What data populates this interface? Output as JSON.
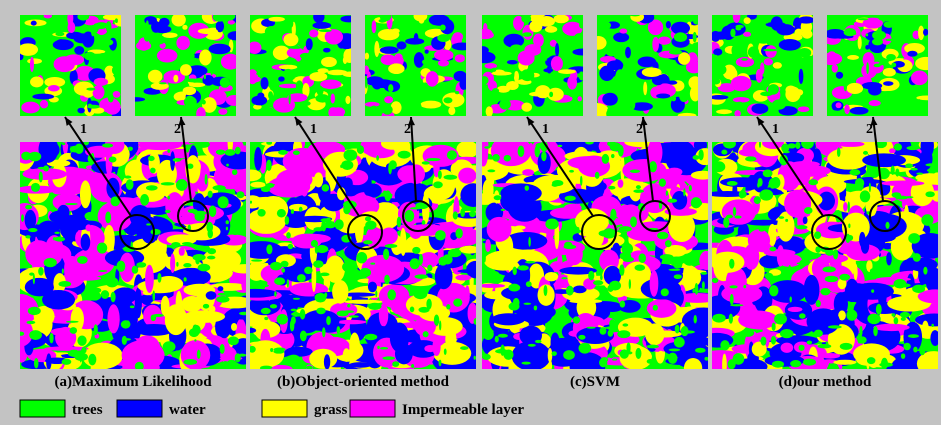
{
  "panels": [
    {
      "caption": "(a)Maximum Likelihood",
      "zooms": [
        "1",
        "2"
      ]
    },
    {
      "caption": "(b)Object-oriented method",
      "zooms": [
        "1",
        "2"
      ]
    },
    {
      "caption": "(c)SVM",
      "zooms": [
        "1",
        "2"
      ]
    },
    {
      "caption": "(d)our method",
      "zooms": [
        "1",
        "2"
      ]
    }
  ],
  "legend": [
    {
      "label": "trees",
      "color": "#00ff00"
    },
    {
      "label": "water",
      "color": "#0000ff"
    },
    {
      "label": "grass",
      "color": "#ffff00"
    },
    {
      "label": "Impermeable layer",
      "color": "#ff00ff"
    }
  ]
}
